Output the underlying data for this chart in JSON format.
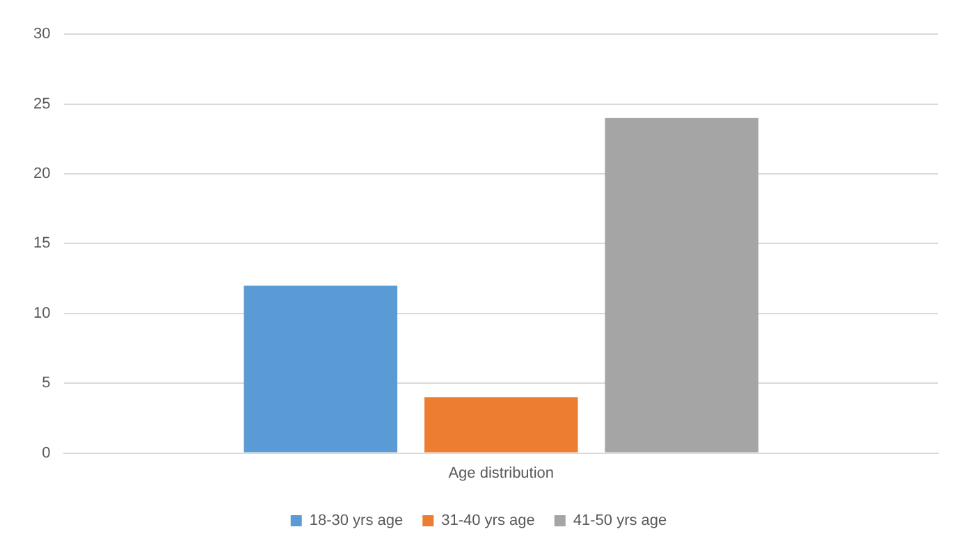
{
  "chart_data": {
    "type": "bar",
    "categories": [
      "Age distribution"
    ],
    "series": [
      {
        "name": "18-30 yrs age",
        "color": "#5b9bd5",
        "values": [
          12
        ]
      },
      {
        "name": "31-40 yrs age",
        "color": "#ed7d31",
        "values": [
          4
        ]
      },
      {
        "name": "41-50 yrs age",
        "color": "#a5a5a5",
        "values": [
          24
        ]
      }
    ],
    "ylim": [
      0,
      30
    ],
    "yticks": [
      0,
      5,
      10,
      15,
      20,
      25,
      30
    ],
    "grid": "y",
    "legend": "bottom"
  }
}
